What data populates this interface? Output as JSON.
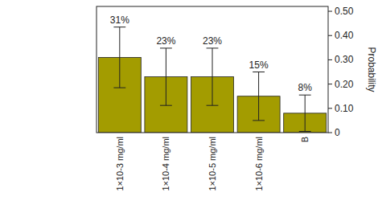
{
  "chart_data": {
    "type": "bar",
    "categories": [
      "1×10-3 mg/ml",
      "1×10-4 mg/ml",
      "1×10-5 mg/ml",
      "1×10-6 mg/ml",
      "B"
    ],
    "values": [
      0.31,
      0.23,
      0.23,
      0.15,
      0.08
    ],
    "value_labels": [
      "31%",
      "23%",
      "23%",
      "15%",
      "8%"
    ],
    "errors": [
      0.125,
      0.118,
      0.118,
      0.1,
      0.075
    ],
    "color": "#a39c00",
    "y_label": "Probability",
    "ylim": [
      0,
      0.52
    ],
    "yticks": [
      0,
      {
        "value": 0.1,
        "label": "0.10"
      },
      {
        "value": 0.2,
        "label": "0.20"
      },
      {
        "value": 0.3,
        "label": "0.30"
      },
      {
        "value": 0.4,
        "label": "0.40"
      },
      {
        "value": 0.5,
        "label": "0.50"
      }
    ],
    "data_labels": true,
    "grid": false
  }
}
